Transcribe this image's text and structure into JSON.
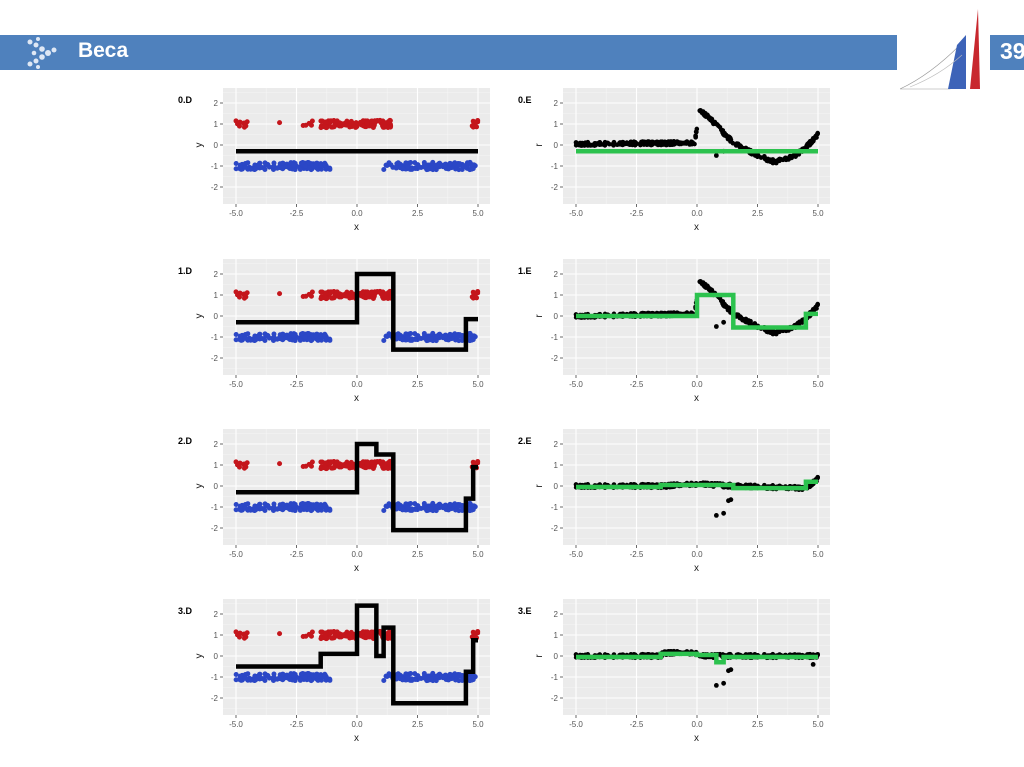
{
  "header": {
    "title": "Веса",
    "page_number": "39"
  },
  "colors": {
    "header_bg": "#4f81bd",
    "red_points": "#c4161c",
    "blue_points": "#2b47c6",
    "step_line_d": "#000000",
    "step_line_e": "#2cc24e",
    "residual_points": "#000000",
    "panel_bg": "#ebebeb"
  },
  "chart_data": [
    {
      "id": "0.D",
      "title": "0.D",
      "type": "scatter",
      "xlabel": "x",
      "ylabel": "y",
      "xlim": [
        -5.5,
        5.5
      ],
      "ylim": [
        -2.7,
        2.7
      ],
      "xticks": [
        "-5.0",
        "-2.5",
        "0.0",
        "2.5",
        "5.0"
      ],
      "yticks": [
        "2",
        "1",
        "0",
        "-1",
        "-2"
      ],
      "step_line": [
        [
          -5,
          -0.3
        ],
        [
          5,
          -0.3
        ]
      ]
    },
    {
      "id": "0.E",
      "title": "0.E",
      "type": "scatter",
      "xlabel": "x",
      "ylabel": "r",
      "xlim": [
        -5.5,
        5.5
      ],
      "ylim": [
        -2.7,
        2.7
      ],
      "xticks": [
        "-5.0",
        "-2.5",
        "0.0",
        "2.5",
        "5.0"
      ],
      "yticks": [
        "2",
        "1",
        "0",
        "-1",
        "-2"
      ],
      "residual_curve": [
        [
          -5,
          0.05
        ],
        [
          -0.1,
          0.1
        ],
        [
          0.1,
          1.65
        ],
        [
          0.5,
          1.3
        ],
        [
          1.0,
          0.7
        ],
        [
          1.5,
          0.1
        ],
        [
          2.5,
          -0.5
        ],
        [
          3.2,
          -0.8
        ],
        [
          4.0,
          -0.55
        ],
        [
          4.6,
          0.0
        ],
        [
          5,
          0.5
        ]
      ],
      "outliers": [
        [
          0.8,
          -0.5
        ],
        [
          1.1,
          -0.3
        ]
      ],
      "step_line": [
        [
          -5,
          -0.3
        ],
        [
          5,
          -0.3
        ]
      ]
    },
    {
      "id": "1.D",
      "title": "1.D",
      "type": "scatter",
      "xlabel": "x",
      "ylabel": "y",
      "xlim": [
        -5.5,
        5.5
      ],
      "ylim": [
        -2.7,
        2.7
      ],
      "xticks": [
        "-5.0",
        "-2.5",
        "0.0",
        "2.5",
        "5.0"
      ],
      "yticks": [
        "2",
        "1",
        "0",
        "-1",
        "-2"
      ],
      "step_line": [
        [
          -5,
          -0.3
        ],
        [
          0,
          2.0
        ],
        [
          1.5,
          -1.6
        ],
        [
          4.5,
          -0.15
        ],
        [
          5,
          -0.15
        ]
      ]
    },
    {
      "id": "1.E",
      "title": "1.E",
      "type": "scatter",
      "xlabel": "x",
      "ylabel": "r",
      "xlim": [
        -5.5,
        5.5
      ],
      "ylim": [
        -2.7,
        2.7
      ],
      "xticks": [
        "-5.0",
        "-2.5",
        "0.0",
        "2.5",
        "5.0"
      ],
      "yticks": [
        "2",
        "1",
        "0",
        "-1",
        "-2"
      ],
      "residual_curve": [
        [
          -5,
          0.0
        ],
        [
          -0.1,
          0.1
        ],
        [
          0.1,
          1.65
        ],
        [
          0.5,
          1.3
        ],
        [
          1.0,
          0.7
        ],
        [
          1.5,
          0.1
        ],
        [
          2.5,
          -0.5
        ],
        [
          3.2,
          -0.8
        ],
        [
          4.0,
          -0.55
        ],
        [
          4.6,
          0.0
        ],
        [
          5,
          0.5
        ]
      ],
      "outliers": [
        [
          0.8,
          -0.5
        ],
        [
          1.1,
          -0.3
        ]
      ],
      "step_line": [
        [
          -5,
          0.0
        ],
        [
          0,
          1.0
        ],
        [
          1.5,
          -0.55
        ],
        [
          4.5,
          0.1
        ],
        [
          5,
          0.1
        ]
      ]
    },
    {
      "id": "2.D",
      "title": "2.D",
      "type": "scatter",
      "xlabel": "x",
      "ylabel": "y",
      "xlim": [
        -5.5,
        5.5
      ],
      "ylim": [
        -2.7,
        2.7
      ],
      "xticks": [
        "-5.0",
        "-2.5",
        "0.0",
        "2.5",
        "5.0"
      ],
      "yticks": [
        "2",
        "1",
        "0",
        "-1",
        "-2"
      ],
      "step_line": [
        [
          -5,
          -0.3
        ],
        [
          0,
          2.0
        ],
        [
          0.8,
          1.5
        ],
        [
          1.5,
          -2.1
        ],
        [
          4.5,
          -0.6
        ],
        [
          4.8,
          0.9
        ],
        [
          5,
          0.9
        ]
      ]
    },
    {
      "id": "2.E",
      "title": "2.E",
      "type": "scatter",
      "xlabel": "x",
      "ylabel": "r",
      "xlim": [
        -5.5,
        5.5
      ],
      "ylim": [
        -2.7,
        2.7
      ],
      "xticks": [
        "-5.0",
        "-2.5",
        "0.0",
        "2.5",
        "5.0"
      ],
      "yticks": [
        "2",
        "1",
        "0",
        "-1",
        "-2"
      ],
      "residual_curve": [
        [
          -5,
          0.0
        ],
        [
          -1.5,
          0.0
        ],
        [
          0,
          0.1
        ],
        [
          1.5,
          0.0
        ],
        [
          4.5,
          -0.1
        ],
        [
          5,
          0.35
        ]
      ],
      "outliers": [
        [
          0.8,
          -1.4
        ],
        [
          1.1,
          -1.3
        ],
        [
          1.3,
          -0.7
        ],
        [
          1.4,
          -0.65
        ]
      ],
      "step_line": [
        [
          -5,
          -0.05
        ],
        [
          -1.5,
          0.05
        ],
        [
          1.5,
          -0.1
        ],
        [
          4.5,
          0.2
        ],
        [
          5,
          0.2
        ]
      ]
    },
    {
      "id": "3.D",
      "title": "3.D",
      "type": "scatter",
      "xlabel": "x",
      "ylabel": "y",
      "xlim": [
        -5.5,
        5.5
      ],
      "ylim": [
        -2.7,
        2.7
      ],
      "xticks": [
        "-5.0",
        "-2.5",
        "0.0",
        "2.5",
        "5.0"
      ],
      "yticks": [
        "2",
        "1",
        "0",
        "-1",
        "-2"
      ],
      "step_line": [
        [
          -5,
          -0.5
        ],
        [
          -1.5,
          0.1
        ],
        [
          0,
          2.4
        ],
        [
          0.8,
          0.0
        ],
        [
          1.1,
          1.35
        ],
        [
          1.5,
          -2.25
        ],
        [
          4.5,
          -0.75
        ],
        [
          4.8,
          0.75
        ],
        [
          5,
          0.75
        ]
      ]
    },
    {
      "id": "3.E",
      "title": "3.E",
      "type": "scatter",
      "xlabel": "x",
      "ylabel": "r",
      "xlim": [
        -5.5,
        5.5
      ],
      "ylim": [
        -2.7,
        2.7
      ],
      "xticks": [
        "-5.0",
        "-2.5",
        "0.0",
        "2.5",
        "5.0"
      ],
      "yticks": [
        "2",
        "1",
        "0",
        "-1",
        "-2"
      ],
      "residual_curve": [
        [
          -5,
          0.0
        ],
        [
          -1.5,
          0.0
        ],
        [
          -1.4,
          0.15
        ],
        [
          0,
          0.15
        ],
        [
          0.1,
          0.0
        ],
        [
          5,
          0.0
        ]
      ],
      "outliers": [
        [
          0.8,
          -1.4
        ],
        [
          1.1,
          -1.3
        ],
        [
          1.3,
          -0.7
        ],
        [
          1.4,
          -0.65
        ],
        [
          4.8,
          -0.4
        ]
      ],
      "step_line": [
        [
          -5,
          -0.05
        ],
        [
          -1.5,
          0.1
        ],
        [
          0,
          0.05
        ],
        [
          0.8,
          -0.3
        ],
        [
          1.1,
          -0.05
        ],
        [
          5,
          -0.05
        ]
      ]
    }
  ],
  "point_clusters": {
    "red_y": 1,
    "blue_y": -1,
    "red": [
      [
        -5,
        -4.5,
        12
      ],
      [
        -3.2,
        -3.2,
        1
      ],
      [
        -2.3,
        -1.8,
        5
      ],
      [
        -1.5,
        1.4,
        120
      ],
      [
        4.7,
        5,
        10
      ]
    ],
    "blue": [
      [
        -5,
        -1.1,
        140
      ],
      [
        0.8,
        1.5,
        6
      ],
      [
        1.6,
        4.9,
        130
      ]
    ]
  }
}
